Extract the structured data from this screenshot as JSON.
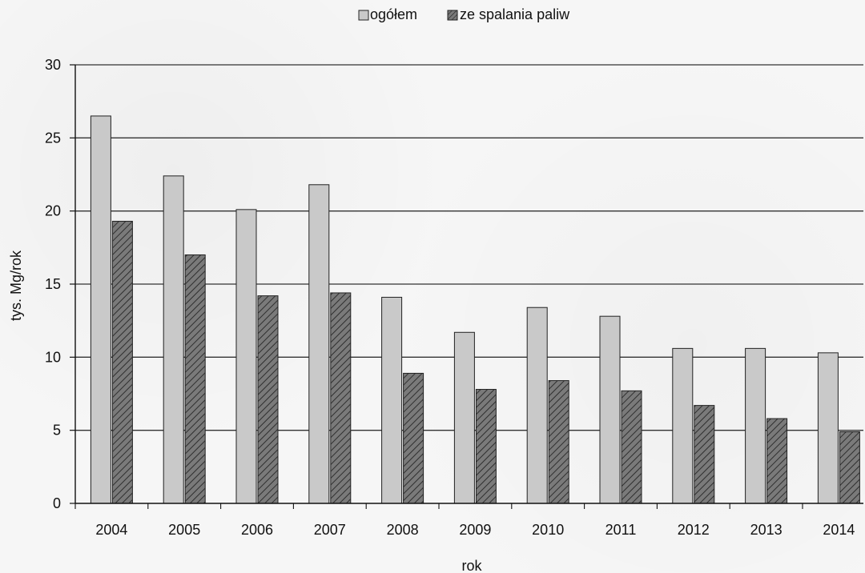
{
  "chart_data": {
    "type": "bar",
    "categories": [
      "2004",
      "2005",
      "2006",
      "2007",
      "2008",
      "2009",
      "2010",
      "2011",
      "2012",
      "2013",
      "2014"
    ],
    "series": [
      {
        "name": "ogółem",
        "values": [
          26.5,
          22.4,
          20.1,
          21.8,
          14.1,
          11.7,
          13.4,
          12.8,
          10.6,
          10.6,
          10.3
        ]
      },
      {
        "name": "ze spalania paliw",
        "values": [
          19.3,
          17.0,
          14.2,
          14.4,
          8.9,
          7.8,
          8.4,
          7.7,
          6.7,
          5.8,
          4.9
        ]
      }
    ],
    "xlabel": "rok",
    "ylabel": "tys. Mg/rok",
    "ylim": [
      0,
      30
    ],
    "yticks": [
      0,
      5,
      10,
      15,
      20,
      25,
      30
    ],
    "legend_position": "top-center",
    "grid": true
  },
  "colors": {
    "ogolem": "#c9c9c9",
    "ze_spalania_paliw": "#6a6a6a",
    "axis": "#111111",
    "grid": "#333333"
  }
}
